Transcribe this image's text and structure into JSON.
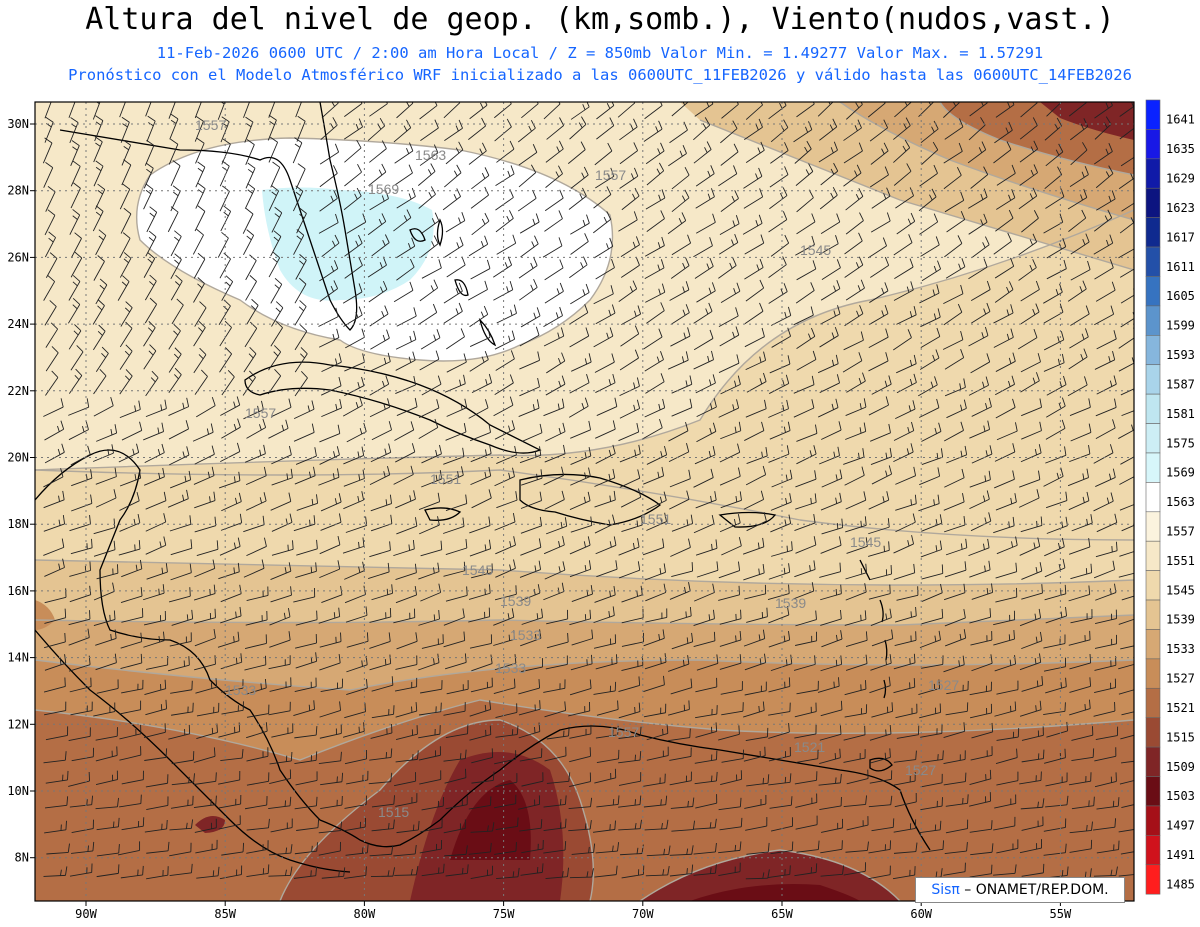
{
  "header": {
    "title": "Altura del nivel de geop. (km,somb.), Viento(nudos,vast.)",
    "subtitle1": "11-Feb-2026  0600 UTC / 2:00 am Hora Local / Z = 850mb    Valor Min. = 1.49277  Valor Max. = 1.57291",
    "subtitle2": "Pronóstico con el Modelo Atmosférico WRF inicializado a las 0600UTC_11FEB2026 y válido hasta las  0600UTC_14FEB2026"
  },
  "map": {
    "lat_labels": [
      "30N",
      "28N",
      "26N",
      "24N",
      "22N",
      "20N",
      "18N",
      "16N",
      "14N",
      "12N",
      "10N",
      "8N"
    ],
    "lon_labels": [
      "90W",
      "85W",
      "80W",
      "75W",
      "70W",
      "65W",
      "60W",
      "55W"
    ],
    "contour_labels": [
      "1557",
      "1563",
      "1569",
      "1557",
      "1545",
      "1557",
      "1551",
      "1551",
      "1545",
      "1545",
      "1539",
      "1539",
      "1533",
      "1533",
      "1527",
      "1533",
      "1521",
      "1527",
      "1515",
      "1557"
    ]
  },
  "colorbar": {
    "levels": [
      "1641",
      "1635",
      "1629",
      "1623",
      "1617",
      "1611",
      "1605",
      "1599",
      "1593",
      "1587",
      "1581",
      "1575",
      "1569",
      "1563",
      "1557",
      "1551",
      "1545",
      "1539",
      "1533",
      "1527",
      "1521",
      "1515",
      "1509",
      "1503",
      "1497",
      "1491",
      "1485"
    ],
    "colors": [
      "#0a22ff",
      "#1818e6",
      "#101aa8",
      "#0c1480",
      "#0f2a8f",
      "#2350a8",
      "#3673c0",
      "#5c94cc",
      "#86b6dd",
      "#a9d4ea",
      "#bfe6f0",
      "#cdeef5",
      "#d7f6fa",
      "#ffffff",
      "#fbf3de",
      "#f6e8c8",
      "#efd9ad",
      "#e4c492",
      "#d6a874",
      "#c88d59",
      "#b46e45",
      "#9a4a33",
      "#7f2526",
      "#6a0d15",
      "#a51018",
      "#d0121c",
      "#ff1e1e"
    ]
  },
  "branding": {
    "logo": "Sisπ",
    "text": " – ONAMET/REP.DOM."
  },
  "colors": {
    "title_color": "#000000",
    "subtitle_color": "#1565ff"
  }
}
